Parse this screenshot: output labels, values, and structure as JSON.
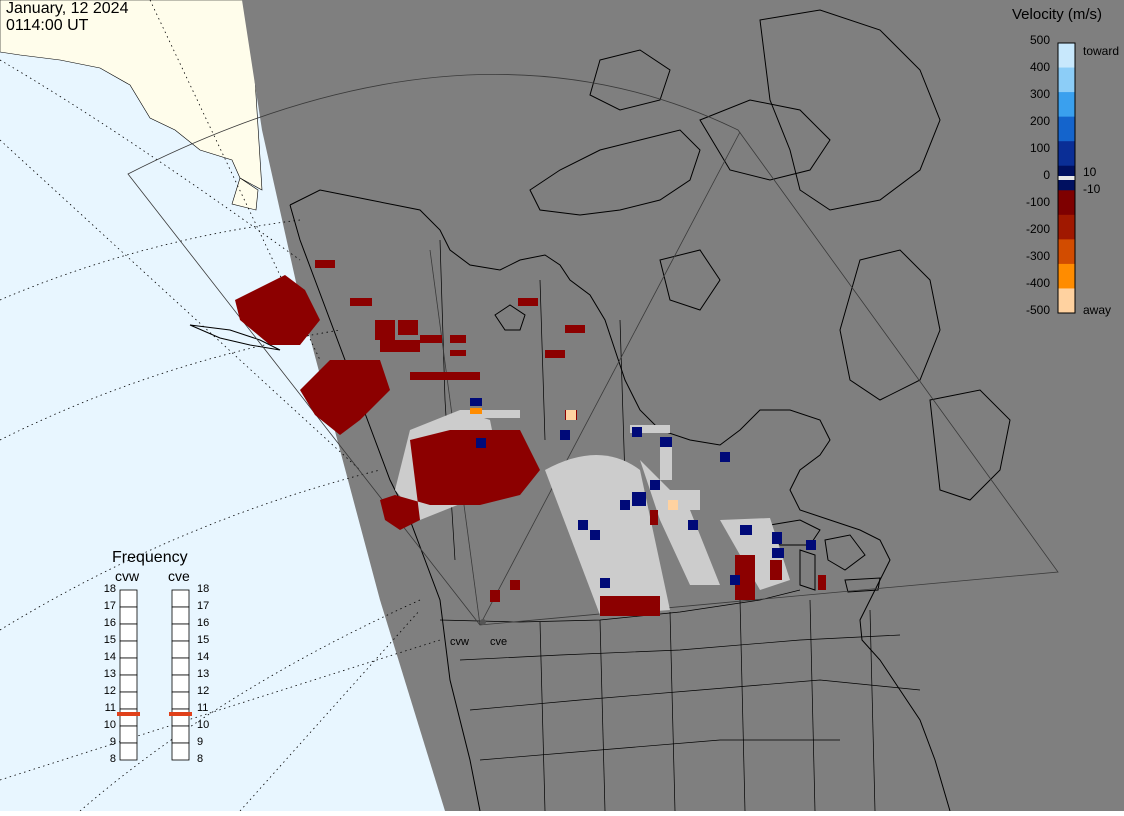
{
  "header": {
    "date": "January, 12 2024",
    "time": "0114:00 UT"
  },
  "velocity_scale": {
    "title": "Velocity (m/s)",
    "ticks": [
      "500",
      "400",
      "300",
      "200",
      "100",
      "0",
      "-100",
      "-200",
      "-300",
      "-400",
      "-500"
    ],
    "toward_label": "toward",
    "away_label": "away",
    "pos_threshold": "10",
    "neg_threshold": "-10",
    "colors": [
      "#c8e8fc",
      "#8ccdf7",
      "#3aa0ee",
      "#1464cc",
      "#0a2e96",
      "#001060",
      "#7e0000",
      "#a01800",
      "#d24c00",
      "#ff8c00",
      "#ffd2a0"
    ]
  },
  "frequency": {
    "title": "Frequency",
    "radars": [
      "cvw",
      "cve"
    ],
    "levels": [
      "18",
      "17",
      "16",
      "15",
      "14",
      "13",
      "12",
      "11",
      "10",
      "9",
      "8"
    ],
    "selected_mhz": {
      "cvw": 11,
      "cve": 11
    }
  },
  "map": {
    "sites": [
      "cvw",
      "cve"
    ],
    "colors": {
      "night_side": "#7f7f7f",
      "ocean_day": "#e8f6ff",
      "land_day": "#fffdeb",
      "ground_scatter": "#cccccc",
      "away": "#8c0000",
      "toward": "#000a78"
    }
  }
}
